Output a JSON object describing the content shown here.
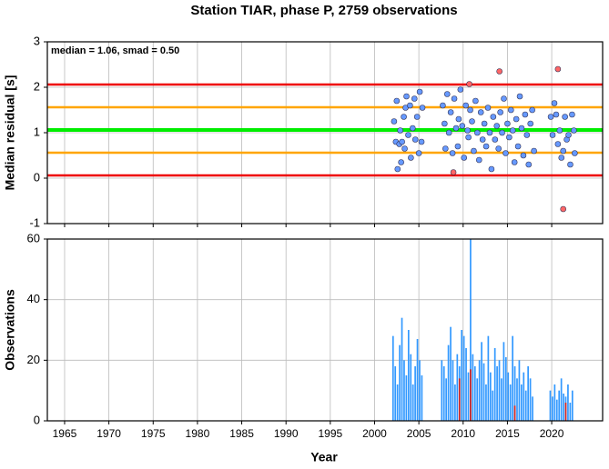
{
  "chart_data": [
    {
      "type": "scatter",
      "title": "Station TIAR, phase P, 2759 observations",
      "ylabel": "Median residual [s]",
      "annotation": "median = 1.06, smad = 0.50",
      "xlim": [
        1963.05,
        2025.75
      ],
      "xticks": [
        1965,
        1970,
        1975,
        1980,
        1985,
        1990,
        1995,
        2000,
        2005,
        2010,
        2015,
        2020
      ],
      "ylim": [
        -1,
        3
      ],
      "yticks": [
        -1,
        0,
        1,
        2,
        3
      ],
      "grid": true,
      "reference_lines": [
        {
          "value": 1.06,
          "color": "#00ee00"
        },
        {
          "value": 0.56,
          "color": "#ffa500"
        },
        {
          "value": 1.56,
          "color": "#ffa500"
        },
        {
          "value": 0.06,
          "color": "#ee0000"
        },
        {
          "value": 2.06,
          "color": "#ee0000"
        }
      ],
      "series": [
        {
          "color": "#6699ff",
          "x": [
            2002.2,
            2002.4,
            2002.5,
            2002.6,
            2002.8,
            2002.9,
            2003.0,
            2003.1,
            2003.3,
            2003.4,
            2003.5,
            2003.6,
            2003.8,
            2004.0,
            2004.1,
            2004.3,
            2004.5,
            2004.6,
            2004.8,
            2005.0,
            2005.1,
            2005.3,
            2005.4,
            2007.7,
            2007.9,
            2008.0,
            2008.2,
            2008.4,
            2008.6,
            2008.8,
            2009.0,
            2009.2,
            2009.4,
            2009.5,
            2009.7,
            2009.9,
            2010.1,
            2010.3,
            2010.5,
            2010.6,
            2010.8,
            2011.0,
            2011.2,
            2011.4,
            2011.6,
            2011.8,
            2012.0,
            2012.2,
            2012.4,
            2012.6,
            2012.8,
            2013.0,
            2013.2,
            2013.4,
            2013.6,
            2013.8,
            2014.0,
            2014.2,
            2014.4,
            2014.6,
            2014.8,
            2015.0,
            2015.2,
            2015.4,
            2015.6,
            2015.8,
            2016.0,
            2016.2,
            2016.4,
            2016.6,
            2016.8,
            2017.0,
            2017.2,
            2017.4,
            2017.6,
            2017.8,
            2018.0,
            2019.9,
            2020.1,
            2020.3,
            2020.5,
            2020.7,
            2020.9,
            2021.1,
            2021.3,
            2021.5,
            2021.7,
            2021.9,
            2022.1,
            2022.3,
            2022.5,
            2022.6
          ],
          "y": [
            1.25,
            0.8,
            1.7,
            0.2,
            0.75,
            1.05,
            0.35,
            0.8,
            1.35,
            0.65,
            1.55,
            1.8,
            0.95,
            1.6,
            0.45,
            1.1,
            1.75,
            0.85,
            1.35,
            0.55,
            1.9,
            0.8,
            1.55,
            1.6,
            1.2,
            0.65,
            1.85,
            1.0,
            1.45,
            0.55,
            1.75,
            1.1,
            0.7,
            1.3,
            1.95,
            1.15,
            0.45,
            1.6,
            1.05,
            0.9,
            1.5,
            1.25,
            0.6,
            1.7,
            1.0,
            0.4,
            1.45,
            0.85,
            1.2,
            0.7,
            1.55,
            1.0,
            0.2,
            1.35,
            0.85,
            1.15,
            0.65,
            1.45,
            1.0,
            1.75,
            0.55,
            1.2,
            0.9,
            1.5,
            1.05,
            0.35,
            1.3,
            0.7,
            1.8,
            1.1,
            0.5,
            1.4,
            0.95,
            0.3,
            1.2,
            1.5,
            0.6,
            1.35,
            0.95,
            1.65,
            1.4,
            0.75,
            1.05,
            0.45,
            0.6,
            1.35,
            0.85,
            0.95,
            0.3,
            1.4,
            1.05,
            0.55
          ]
        },
        {
          "color": "#ff6666",
          "x": [
            2008.9,
            2010.7,
            2014.1,
            2020.7,
            2021.3
          ],
          "y": [
            0.13,
            2.07,
            2.35,
            2.4,
            -0.68
          ]
        }
      ]
    },
    {
      "type": "bar",
      "ylabel": "Observations",
      "xlabel": "Year",
      "xlim": [
        1963.05,
        2025.75
      ],
      "xticks": [
        1965,
        1970,
        1975,
        1980,
        1985,
        1990,
        1995,
        2000,
        2005,
        2010,
        2015,
        2020
      ],
      "ylim": [
        0,
        60
      ],
      "yticks": [
        0,
        20,
        40,
        60
      ],
      "grid": true,
      "bar_width": 0.25,
      "series": [
        {
          "color": "#3399ff",
          "x": [
            2002.0,
            2002.25,
            2002.5,
            2002.75,
            2003.0,
            2003.25,
            2003.5,
            2003.75,
            2004.0,
            2004.25,
            2004.5,
            2004.75,
            2005.0,
            2005.25,
            2007.5,
            2007.75,
            2008.0,
            2008.25,
            2008.5,
            2008.75,
            2009.0,
            2009.25,
            2009.5,
            2009.75,
            2010.0,
            2010.25,
            2010.5,
            2010.75,
            2011.0,
            2011.25,
            2011.5,
            2011.75,
            2012.0,
            2012.25,
            2012.5,
            2012.75,
            2013.0,
            2013.25,
            2013.5,
            2013.75,
            2014.0,
            2014.25,
            2014.5,
            2014.75,
            2015.0,
            2015.25,
            2015.5,
            2015.75,
            2016.0,
            2016.25,
            2016.5,
            2016.75,
            2017.0,
            2017.25,
            2017.5,
            2017.75,
            2019.75,
            2020.0,
            2020.25,
            2020.5,
            2020.75,
            2021.0,
            2021.25,
            2021.5,
            2021.75,
            2022.0,
            2022.25
          ],
          "values": [
            28,
            18,
            12,
            25,
            34,
            20,
            15,
            30,
            22,
            12,
            18,
            27,
            20,
            15,
            20,
            18,
            14,
            25,
            31,
            20,
            12,
            22,
            18,
            30,
            28,
            24,
            16,
            60,
            22,
            18,
            14,
            20,
            26,
            19,
            12,
            28,
            16,
            10,
            24,
            18,
            20,
            14,
            26,
            21,
            16,
            12,
            28,
            18,
            14,
            20,
            12,
            16,
            10,
            18,
            14,
            8,
            10,
            8,
            12,
            7,
            10,
            14,
            9,
            8,
            12,
            6,
            10
          ]
        },
        {
          "color": "#cc2222",
          "x": [
            2009.5,
            2010.75,
            2015.75,
            2021.5
          ],
          "values": [
            14,
            17,
            5,
            6
          ]
        }
      ]
    }
  ]
}
